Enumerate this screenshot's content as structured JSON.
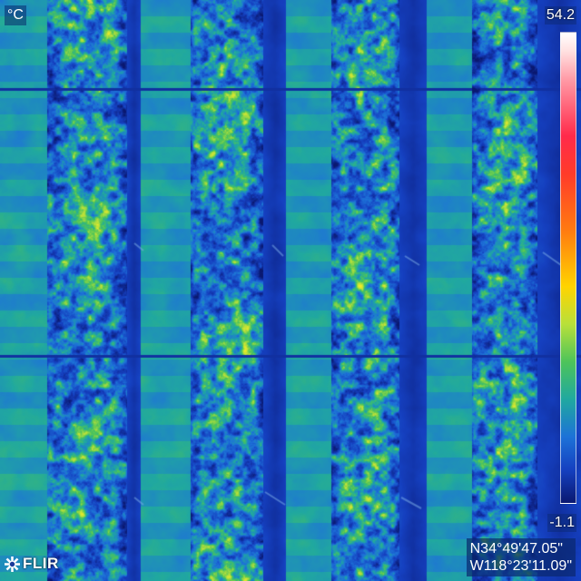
{
  "thermal_view": {
    "unit": "°C",
    "scale_max": "54.2",
    "scale_min": "-1.1",
    "palette": [
      "#0a1870",
      "#1540c0",
      "#1d72d8",
      "#20a8a0",
      "#4dc45a",
      "#b8e03a",
      "#ffd400",
      "#ff7a10",
      "#ff2a4a",
      "#ffffff"
    ]
  },
  "brand": {
    "name": "FLIR",
    "icon": "flir-logo-icon"
  },
  "gps": {
    "latitude": "N34°49'47.05\"",
    "longitude": "W118°23'11.09\""
  }
}
